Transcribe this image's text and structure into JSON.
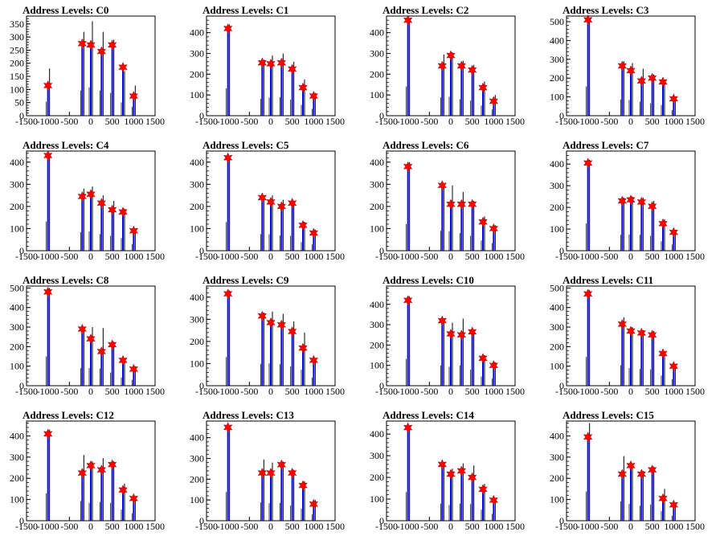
{
  "figure": {
    "layout": "4x4 grid of histograms"
  },
  "colors": {
    "histogram_line": "#000000",
    "fill_bars": "#0000ff",
    "peak_marker": "#ff0000",
    "frame": "#000000"
  },
  "marker_shape": "star",
  "xlim": [
    -1500,
    1500
  ],
  "x_ticks": [
    -1500,
    -1000,
    -500,
    0,
    500,
    1000,
    1500
  ],
  "chart_data": [
    {
      "type": "bar",
      "title": "Address Levels: C0",
      "xlabel": "",
      "ylabel": "",
      "ylim": [
        0,
        380
      ],
      "y_ticks": [
        0,
        50,
        100,
        150,
        200,
        250,
        300,
        350
      ],
      "peaks": [
        {
          "x": -1000,
          "y": 115
        },
        {
          "x": -200,
          "y": 275
        },
        {
          "x": 0,
          "y": 270
        },
        {
          "x": 250,
          "y": 245
        },
        {
          "x": 500,
          "y": 270
        },
        {
          "x": 750,
          "y": 185
        },
        {
          "x": 1000,
          "y": 75
        }
      ],
      "histogram_max": [
        {
          "x": -1000,
          "y": 180
        },
        {
          "x": -200,
          "y": 320
        },
        {
          "x": 0,
          "y": 360
        },
        {
          "x": 250,
          "y": 320
        },
        {
          "x": 500,
          "y": 290
        },
        {
          "x": 750,
          "y": 170
        },
        {
          "x": 1000,
          "y": 115
        }
      ]
    },
    {
      "type": "bar",
      "title": "Address Levels: C1",
      "xlabel": "",
      "ylabel": "",
      "ylim": [
        0,
        480
      ],
      "y_ticks": [
        0,
        100,
        200,
        300,
        400
      ],
      "peaks": [
        {
          "x": -1000,
          "y": 420
        },
        {
          "x": -200,
          "y": 255
        },
        {
          "x": 0,
          "y": 250
        },
        {
          "x": 250,
          "y": 255
        },
        {
          "x": 500,
          "y": 225
        },
        {
          "x": 750,
          "y": 135
        },
        {
          "x": 1000,
          "y": 95
        }
      ],
      "histogram_max": [
        {
          "x": -1000,
          "y": 440
        },
        {
          "x": -200,
          "y": 270
        },
        {
          "x": 0,
          "y": 290
        },
        {
          "x": 250,
          "y": 300
        },
        {
          "x": 500,
          "y": 260
        },
        {
          "x": 750,
          "y": 175
        },
        {
          "x": 1000,
          "y": 110
        }
      ]
    },
    {
      "type": "bar",
      "title": "Address Levels: C2",
      "xlabel": "",
      "ylabel": "",
      "ylim": [
        0,
        480
      ],
      "y_ticks": [
        0,
        100,
        200,
        300,
        400
      ],
      "peaks": [
        {
          "x": -1000,
          "y": 460
        },
        {
          "x": -200,
          "y": 240
        },
        {
          "x": 0,
          "y": 290
        },
        {
          "x": 250,
          "y": 240
        },
        {
          "x": 500,
          "y": 220
        },
        {
          "x": 750,
          "y": 135
        },
        {
          "x": 1000,
          "y": 70
        }
      ],
      "histogram_max": [
        {
          "x": -1000,
          "y": 470
        },
        {
          "x": -200,
          "y": 295
        },
        {
          "x": 0,
          "y": 305
        },
        {
          "x": 250,
          "y": 265
        },
        {
          "x": 500,
          "y": 245
        },
        {
          "x": 750,
          "y": 165
        },
        {
          "x": 1000,
          "y": 100
        }
      ]
    },
    {
      "type": "bar",
      "title": "Address Levels: C3",
      "xlabel": "",
      "ylabel": "",
      "ylim": [
        0,
        530
      ],
      "y_ticks": [
        0,
        100,
        200,
        300,
        400,
        500
      ],
      "peaks": [
        {
          "x": -1000,
          "y": 510
        },
        {
          "x": -200,
          "y": 265
        },
        {
          "x": 0,
          "y": 240
        },
        {
          "x": 250,
          "y": 185
        },
        {
          "x": 500,
          "y": 200
        },
        {
          "x": 750,
          "y": 180
        },
        {
          "x": 1000,
          "y": 90
        }
      ],
      "histogram_max": [
        {
          "x": -1000,
          "y": 520
        },
        {
          "x": -200,
          "y": 290
        },
        {
          "x": 0,
          "y": 280
        },
        {
          "x": 250,
          "y": 250
        },
        {
          "x": 500,
          "y": 220
        },
        {
          "x": 750,
          "y": 190
        },
        {
          "x": 1000,
          "y": 100
        }
      ]
    },
    {
      "type": "bar",
      "title": "Address Levels: C4",
      "xlabel": "",
      "ylabel": "",
      "ylim": [
        0,
        450
      ],
      "y_ticks": [
        0,
        100,
        200,
        300,
        400
      ],
      "peaks": [
        {
          "x": -1000,
          "y": 430
        },
        {
          "x": -200,
          "y": 245
        },
        {
          "x": 0,
          "y": 255
        },
        {
          "x": 250,
          "y": 215
        },
        {
          "x": 500,
          "y": 185
        },
        {
          "x": 750,
          "y": 175
        },
        {
          "x": 1000,
          "y": 90
        }
      ],
      "histogram_max": [
        {
          "x": -1000,
          "y": 440
        },
        {
          "x": -200,
          "y": 280
        },
        {
          "x": 0,
          "y": 290
        },
        {
          "x": 250,
          "y": 250
        },
        {
          "x": 500,
          "y": 225
        },
        {
          "x": 750,
          "y": 190
        },
        {
          "x": 1000,
          "y": 100
        }
      ]
    },
    {
      "type": "bar",
      "title": "Address Levels: C5",
      "xlabel": "",
      "ylabel": "",
      "ylim": [
        0,
        450
      ],
      "y_ticks": [
        0,
        100,
        200,
        300,
        400
      ],
      "peaks": [
        {
          "x": -1000,
          "y": 420
        },
        {
          "x": -200,
          "y": 240
        },
        {
          "x": 0,
          "y": 220
        },
        {
          "x": 250,
          "y": 200
        },
        {
          "x": 500,
          "y": 215
        },
        {
          "x": 750,
          "y": 115
        },
        {
          "x": 1000,
          "y": 80
        }
      ],
      "histogram_max": [
        {
          "x": -1000,
          "y": 430
        },
        {
          "x": -200,
          "y": 250
        },
        {
          "x": 0,
          "y": 250
        },
        {
          "x": 250,
          "y": 230
        },
        {
          "x": 500,
          "y": 225
        },
        {
          "x": 750,
          "y": 130
        },
        {
          "x": 1000,
          "y": 95
        }
      ]
    },
    {
      "type": "bar",
      "title": "Address Levels: C6",
      "xlabel": "",
      "ylabel": "",
      "ylim": [
        0,
        450
      ],
      "y_ticks": [
        0,
        100,
        200,
        300,
        400
      ],
      "peaks": [
        {
          "x": -1000,
          "y": 380
        },
        {
          "x": -200,
          "y": 295
        },
        {
          "x": 0,
          "y": 210
        },
        {
          "x": 250,
          "y": 210
        },
        {
          "x": 500,
          "y": 210
        },
        {
          "x": 750,
          "y": 130
        },
        {
          "x": 1000,
          "y": 100
        }
      ],
      "histogram_max": [
        {
          "x": -1000,
          "y": 400
        },
        {
          "x": -200,
          "y": 300
        },
        {
          "x": 0,
          "y": 295
        },
        {
          "x": 250,
          "y": 265
        },
        {
          "x": 500,
          "y": 225
        },
        {
          "x": 750,
          "y": 155
        },
        {
          "x": 1000,
          "y": 115
        }
      ]
    },
    {
      "type": "bar",
      "title": "Address Levels: C7",
      "xlabel": "",
      "ylabel": "",
      "ylim": [
        0,
        460
      ],
      "y_ticks": [
        0,
        100,
        200,
        300,
        400
      ],
      "peaks": [
        {
          "x": -1000,
          "y": 405
        },
        {
          "x": -200,
          "y": 230
        },
        {
          "x": 0,
          "y": 235
        },
        {
          "x": 250,
          "y": 225
        },
        {
          "x": 500,
          "y": 205
        },
        {
          "x": 750,
          "y": 125
        },
        {
          "x": 1000,
          "y": 85
        }
      ],
      "histogram_max": [
        {
          "x": -1000,
          "y": 420
        },
        {
          "x": -200,
          "y": 245
        },
        {
          "x": 0,
          "y": 250
        },
        {
          "x": 250,
          "y": 245
        },
        {
          "x": 500,
          "y": 230
        },
        {
          "x": 750,
          "y": 145
        },
        {
          "x": 1000,
          "y": 95
        }
      ]
    },
    {
      "type": "bar",
      "title": "Address Levels: C8",
      "xlabel": "",
      "ylabel": "",
      "ylim": [
        0,
        510
      ],
      "y_ticks": [
        0,
        100,
        200,
        300,
        400,
        500
      ],
      "peaks": [
        {
          "x": -1000,
          "y": 480
        },
        {
          "x": -200,
          "y": 290
        },
        {
          "x": 0,
          "y": 240
        },
        {
          "x": 250,
          "y": 175
        },
        {
          "x": 500,
          "y": 210
        },
        {
          "x": 750,
          "y": 130
        },
        {
          "x": 1000,
          "y": 85
        }
      ],
      "histogram_max": [
        {
          "x": -1000,
          "y": 500
        },
        {
          "x": -200,
          "y": 300
        },
        {
          "x": 0,
          "y": 300
        },
        {
          "x": 250,
          "y": 295
        },
        {
          "x": 500,
          "y": 225
        },
        {
          "x": 750,
          "y": 140
        },
        {
          "x": 1000,
          "y": 100
        }
      ]
    },
    {
      "type": "bar",
      "title": "Address Levels: C9",
      "xlabel": "",
      "ylabel": "",
      "ylim": [
        0,
        450
      ],
      "y_ticks": [
        0,
        100,
        200,
        300,
        400
      ],
      "peaks": [
        {
          "x": -1000,
          "y": 415
        },
        {
          "x": -200,
          "y": 315
        },
        {
          "x": 0,
          "y": 285
        },
        {
          "x": 250,
          "y": 275
        },
        {
          "x": 500,
          "y": 245
        },
        {
          "x": 750,
          "y": 170
        },
        {
          "x": 1000,
          "y": 115
        }
      ],
      "histogram_max": [
        {
          "x": -1000,
          "y": 430
        },
        {
          "x": -200,
          "y": 330
        },
        {
          "x": 0,
          "y": 335
        },
        {
          "x": 250,
          "y": 325
        },
        {
          "x": 500,
          "y": 290
        },
        {
          "x": 750,
          "y": 240
        },
        {
          "x": 1000,
          "y": 125
        }
      ]
    },
    {
      "type": "bar",
      "title": "Address Levels: C10",
      "xlabel": "",
      "ylabel": "",
      "ylim": [
        0,
        490
      ],
      "y_ticks": [
        0,
        100,
        200,
        300,
        400
      ],
      "peaks": [
        {
          "x": -1000,
          "y": 420
        },
        {
          "x": -200,
          "y": 320
        },
        {
          "x": 0,
          "y": 255
        },
        {
          "x": 250,
          "y": 250
        },
        {
          "x": 500,
          "y": 265
        },
        {
          "x": 750,
          "y": 135
        },
        {
          "x": 1000,
          "y": 100
        }
      ],
      "histogram_max": [
        {
          "x": -1000,
          "y": 440
        },
        {
          "x": -200,
          "y": 330
        },
        {
          "x": 0,
          "y": 310
        },
        {
          "x": 250,
          "y": 330
        },
        {
          "x": 500,
          "y": 265
        },
        {
          "x": 750,
          "y": 150
        },
        {
          "x": 1000,
          "y": 115
        }
      ]
    },
    {
      "type": "bar",
      "title": "Address Levels: C11",
      "xlabel": "",
      "ylabel": "",
      "ylim": [
        0,
        510
      ],
      "y_ticks": [
        0,
        100,
        200,
        300,
        400,
        500
      ],
      "peaks": [
        {
          "x": -1000,
          "y": 470
        },
        {
          "x": -200,
          "y": 315
        },
        {
          "x": 0,
          "y": 280
        },
        {
          "x": 250,
          "y": 270
        },
        {
          "x": 500,
          "y": 260
        },
        {
          "x": 750,
          "y": 165
        },
        {
          "x": 1000,
          "y": 100
        }
      ],
      "histogram_max": [
        {
          "x": -1000,
          "y": 490
        },
        {
          "x": -200,
          "y": 350
        },
        {
          "x": 0,
          "y": 300
        },
        {
          "x": 250,
          "y": 285
        },
        {
          "x": 500,
          "y": 280
        },
        {
          "x": 750,
          "y": 175
        },
        {
          "x": 1000,
          "y": 110
        }
      ]
    },
    {
      "type": "bar",
      "title": "Address Levels: C12",
      "xlabel": "",
      "ylabel": "",
      "ylim": [
        0,
        470
      ],
      "y_ticks": [
        0,
        100,
        200,
        300,
        400
      ],
      "peaks": [
        {
          "x": -1000,
          "y": 410
        },
        {
          "x": -200,
          "y": 225
        },
        {
          "x": 0,
          "y": 260
        },
        {
          "x": 250,
          "y": 240
        },
        {
          "x": 500,
          "y": 265
        },
        {
          "x": 750,
          "y": 145
        },
        {
          "x": 1000,
          "y": 105
        }
      ],
      "histogram_max": [
        {
          "x": -1000,
          "y": 430
        },
        {
          "x": -200,
          "y": 310
        },
        {
          "x": 0,
          "y": 280
        },
        {
          "x": 250,
          "y": 295
        },
        {
          "x": 500,
          "y": 280
        },
        {
          "x": 750,
          "y": 175
        },
        {
          "x": 1000,
          "y": 115
        }
      ]
    },
    {
      "type": "bar",
      "title": "Address Levels: C13",
      "xlabel": "",
      "ylabel": "",
      "ylim": [
        0,
        480
      ],
      "y_ticks": [
        0,
        100,
        200,
        300,
        400
      ],
      "peaks": [
        {
          "x": -1000,
          "y": 450
        },
        {
          "x": -200,
          "y": 230
        },
        {
          "x": 0,
          "y": 230
        },
        {
          "x": 250,
          "y": 270
        },
        {
          "x": 500,
          "y": 230
        },
        {
          "x": 750,
          "y": 170
        },
        {
          "x": 1000,
          "y": 80
        }
      ],
      "histogram_max": [
        {
          "x": -1000,
          "y": 460
        },
        {
          "x": -200,
          "y": 295
        },
        {
          "x": 0,
          "y": 280
        },
        {
          "x": 250,
          "y": 285
        },
        {
          "x": 500,
          "y": 245
        },
        {
          "x": 750,
          "y": 190
        },
        {
          "x": 1000,
          "y": 100
        }
      ]
    },
    {
      "type": "bar",
      "title": "Address Levels: C14",
      "xlabel": "",
      "ylabel": "",
      "ylim": [
        0,
        460
      ],
      "y_ticks": [
        0,
        100,
        200,
        300,
        400
      ],
      "peaks": [
        {
          "x": -1000,
          "y": 430
        },
        {
          "x": -200,
          "y": 260
        },
        {
          "x": 0,
          "y": 215
        },
        {
          "x": 250,
          "y": 230
        },
        {
          "x": 500,
          "y": 200
        },
        {
          "x": 750,
          "y": 145
        },
        {
          "x": 1000,
          "y": 95
        }
      ],
      "histogram_max": [
        {
          "x": -1000,
          "y": 440
        },
        {
          "x": -200,
          "y": 265
        },
        {
          "x": 0,
          "y": 240
        },
        {
          "x": 250,
          "y": 265
        },
        {
          "x": 500,
          "y": 255
        },
        {
          "x": 750,
          "y": 170
        },
        {
          "x": 1000,
          "y": 105
        }
      ]
    },
    {
      "type": "bar",
      "title": "Address Levels: C15",
      "xlabel": "",
      "ylabel": "",
      "ylim": [
        0,
        470
      ],
      "y_ticks": [
        0,
        100,
        200,
        300,
        400
      ],
      "peaks": [
        {
          "x": -1000,
          "y": 395
        },
        {
          "x": -200,
          "y": 220
        },
        {
          "x": 0,
          "y": 260
        },
        {
          "x": 250,
          "y": 220
        },
        {
          "x": 500,
          "y": 240
        },
        {
          "x": 750,
          "y": 105
        },
        {
          "x": 1000,
          "y": 75
        }
      ],
      "histogram_max": [
        {
          "x": -1000,
          "y": 460
        },
        {
          "x": -200,
          "y": 305
        },
        {
          "x": 0,
          "y": 265
        },
        {
          "x": 250,
          "y": 235
        },
        {
          "x": 500,
          "y": 255
        },
        {
          "x": 750,
          "y": 150
        },
        {
          "x": 1000,
          "y": 80
        }
      ]
    }
  ]
}
